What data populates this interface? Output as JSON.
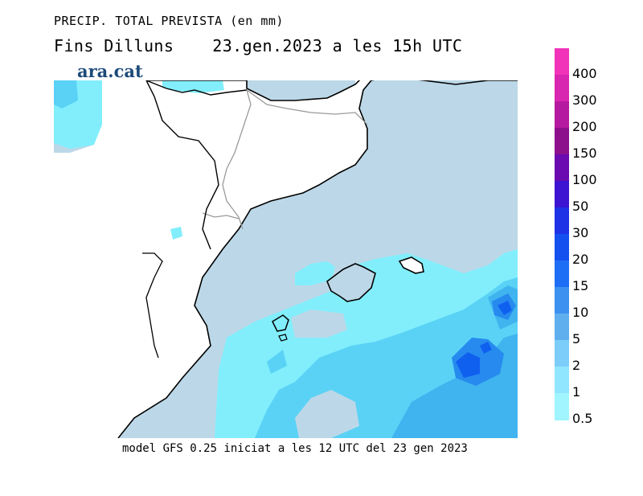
{
  "header": {
    "line1": "PRECIP. TOTAL PREVISTA (en mm)",
    "line2_left": "Fins Dilluns",
    "line2_right": "23.gen.2023 a les 15h UTC"
  },
  "logo": {
    "text": "ara.cat"
  },
  "footer": {
    "text": "model GFS 0.25 iniciat a les 12 UTC del 23 gen 2023"
  },
  "legend": {
    "labels": [
      "400",
      "300",
      "200",
      "150",
      "100",
      "50",
      "30",
      "20",
      "15",
      "10",
      "5",
      "2",
      "1",
      "0.5"
    ],
    "colors": [
      "#f033b8",
      "#d926b0",
      "#b5199f",
      "#8c0f8c",
      "#6a0ab0",
      "#3c14d2",
      "#1e32e6",
      "#1450f0",
      "#1e6ef5",
      "#3c91f0",
      "#5fafef",
      "#7dcdfa",
      "#91e6ff",
      "#a0f5ff"
    ]
  },
  "map": {
    "colors": {
      "land": "#ffffff",
      "sea": "#bcd8e8",
      "precip_0_5": "#82eefc",
      "precip_2": "#5ad2f6",
      "precip_5": "#3fb4ef",
      "precip_10": "#268aee",
      "precip_15": "#1060f0",
      "coast": "#000000",
      "border": "#9a9a9a"
    }
  }
}
